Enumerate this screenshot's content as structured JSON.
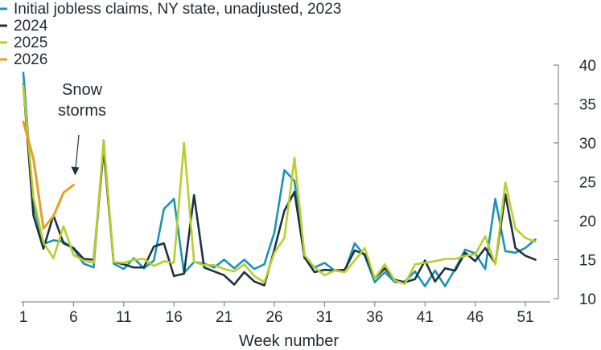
{
  "chart_data": {
    "type": "line",
    "title": "",
    "xlabel": "Week number",
    "ylabel": "",
    "xlim": [
      1,
      53
    ],
    "ylim": [
      10,
      40
    ],
    "x_ticks": [
      1,
      6,
      11,
      16,
      21,
      26,
      31,
      36,
      41,
      46,
      51
    ],
    "y_ticks": [
      10,
      15,
      20,
      25,
      30,
      35,
      40
    ],
    "y_axis_side": "right",
    "legend_placement": "top-left",
    "grid": false,
    "annotation": {
      "lines": [
        "Snow",
        "storms"
      ],
      "x": 6,
      "y": 25
    },
    "series": [
      {
        "name": "Initial jobless claims, NY state, unadjusted, 2023",
        "color": "#1a93b8",
        "x": [
          1,
          2,
          3,
          4,
          5,
          6,
          7,
          8,
          9,
          10,
          11,
          12,
          13,
          14,
          15,
          16,
          17,
          18,
          19,
          20,
          21,
          22,
          23,
          24,
          25,
          26,
          27,
          28,
          29,
          30,
          31,
          32,
          33,
          34,
          35,
          36,
          37,
          38,
          39,
          40,
          41,
          42,
          43,
          44,
          45,
          46,
          47,
          48,
          49,
          50,
          51,
          52
        ],
        "values": [
          39,
          22,
          17,
          17.5,
          17.3,
          16.4,
          14.5,
          14,
          30.3,
          14.5,
          13.8,
          15.2,
          13.9,
          14.9,
          21.5,
          22.8,
          13.3,
          14.7,
          14.5,
          14,
          15,
          13.9,
          15,
          13.8,
          14.4,
          18.5,
          26.5,
          25.1,
          15.2,
          14,
          14.6,
          13.6,
          13.5,
          17.1,
          15.5,
          12.1,
          13.4,
          12.1,
          12.2,
          13.5,
          11.6,
          13.6,
          11.6,
          13.8,
          16.3,
          15.8,
          13.8,
          22.8,
          16.1,
          15.9,
          16.5,
          17.6
        ]
      },
      {
        "name": "2024",
        "color": "#1e3340",
        "x": [
          1,
          2,
          3,
          4,
          5,
          6,
          7,
          8,
          9,
          10,
          11,
          12,
          13,
          14,
          15,
          16,
          17,
          18,
          19,
          20,
          21,
          22,
          23,
          24,
          25,
          26,
          27,
          28,
          29,
          30,
          31,
          32,
          33,
          34,
          35,
          36,
          37,
          38,
          39,
          40,
          41,
          42,
          43,
          44,
          45,
          46,
          47,
          48,
          49,
          50,
          51,
          52
        ],
        "values": [
          37.5,
          20.7,
          16.4,
          20.7,
          17.1,
          16.5,
          15.1,
          15,
          29.2,
          14.7,
          14.4,
          14,
          14,
          16.7,
          17.1,
          12.9,
          13.2,
          23.3,
          14,
          13.5,
          13,
          11.8,
          13.4,
          12.2,
          11.7,
          16.3,
          21.3,
          23.7,
          15.3,
          13.4,
          13.7,
          13.6,
          13.7,
          16.2,
          15.7,
          12.6,
          13.9,
          12.4,
          12.1,
          12.5,
          14.9,
          12.2,
          13.9,
          13.6,
          15.9,
          14.8,
          16.5,
          14.5,
          23.4,
          16.5,
          15.5,
          15
        ]
      },
      {
        "name": "2025",
        "color": "#b8cf2a",
        "x": [
          1,
          2,
          3,
          4,
          5,
          6,
          7,
          8,
          9,
          10,
          11,
          12,
          13,
          14,
          15,
          16,
          17,
          18,
          19,
          20,
          21,
          22,
          23,
          24,
          25,
          26,
          27,
          28,
          29,
          30,
          31,
          32,
          33,
          34,
          35,
          36,
          37,
          38,
          39,
          40,
          41,
          42,
          43,
          44,
          45,
          46,
          47,
          48,
          49,
          50,
          51,
          52
        ],
        "values": [
          37.4,
          23,
          17.2,
          15.2,
          19.3,
          15.6,
          14.9,
          14.6,
          30.2,
          14.7,
          14.6,
          15,
          15.1,
          14.2,
          14.8,
          14.6,
          30,
          14.7,
          14.3,
          14.3,
          13.8,
          13.5,
          14.4,
          12.9,
          12.1,
          15.9,
          17.8,
          28.1,
          15.6,
          14,
          13,
          13.6,
          13.4,
          14.9,
          16.5,
          12.6,
          14.4,
          12.3,
          11.9,
          14.4,
          14.6,
          14.8,
          15.1,
          15.1,
          15.5,
          15.7,
          18,
          14.4,
          24.9,
          19,
          17.8,
          17.3
        ]
      },
      {
        "name": "2026",
        "color": "#e2a125",
        "x": [
          1,
          2,
          3,
          4,
          5,
          6
        ],
        "values": [
          32.7,
          28,
          19,
          20.6,
          23.6,
          24.6
        ]
      }
    ]
  }
}
